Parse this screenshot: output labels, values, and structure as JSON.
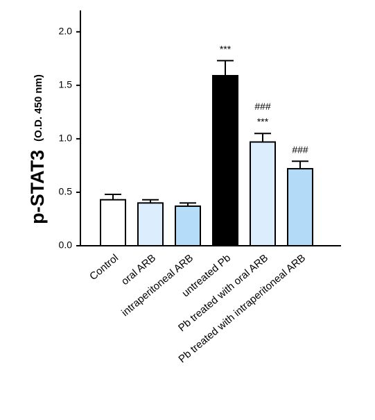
{
  "chart_data": {
    "type": "bar",
    "ylabel": "p-STAT3",
    "ylabel_unit": "(O.D. 450 nm)",
    "categories": [
      "Control",
      "oral ARB",
      "intraperitoneal ARB",
      "untreated Pb",
      "Pb treated with oral ARB",
      "Pb treated with intraperitoneal ARB"
    ],
    "values": [
      0.43,
      0.4,
      0.37,
      1.59,
      0.97,
      0.72
    ],
    "errors": [
      0.05,
      0.03,
      0.03,
      0.14,
      0.08,
      0.07
    ],
    "colors": [
      "#ffffff",
      "#dcedfd",
      "#b5dcf8",
      "#000000",
      "#dcedfd",
      "#b3dbf8"
    ],
    "annotations": [
      null,
      null,
      null,
      [
        "***"
      ],
      [
        "###",
        "***"
      ],
      [
        "###"
      ]
    ],
    "ylim": [
      0,
      2.2
    ],
    "yticks": [
      {
        "value": 0,
        "label": "0.0"
      },
      0.5,
      {
        "value": 1,
        "label": "1.0"
      },
      1.5,
      {
        "value": 2,
        "label": "2.0"
      }
    ]
  }
}
